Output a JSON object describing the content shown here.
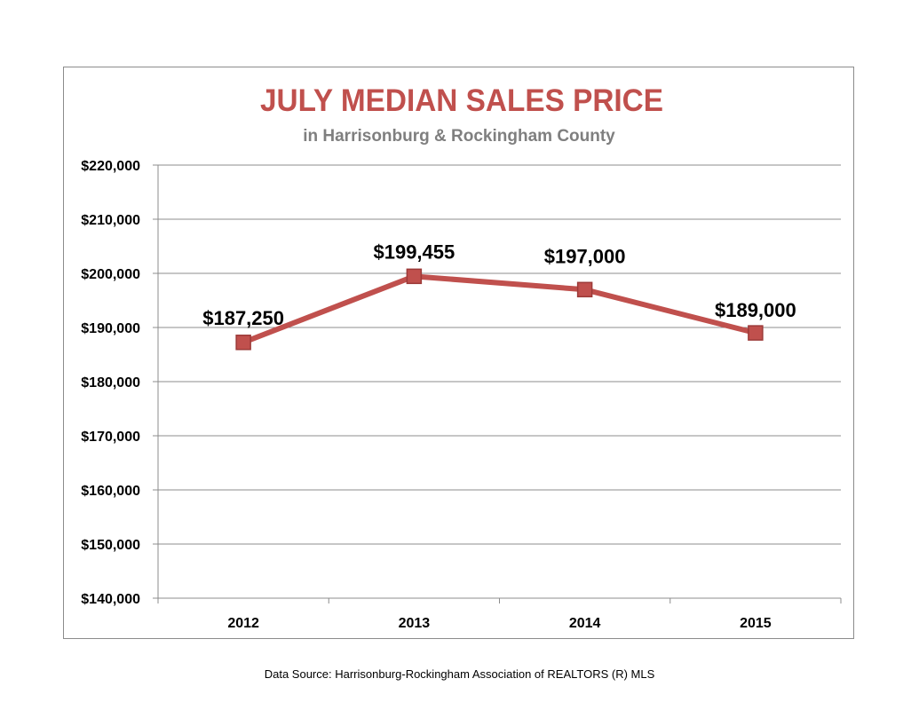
{
  "chart_data": {
    "type": "line",
    "title": "JULY MEDIAN SALES PRICE",
    "subtitle": "in Harrisonburg  & Rockingham County",
    "categories": [
      "2012",
      "2013",
      "2014",
      "2015"
    ],
    "series": [
      {
        "values": [
          187250,
          199455,
          197000,
          189000
        ],
        "labels": [
          "$187,250",
          "$199,455",
          "$197,000",
          "$189,000"
        ],
        "color": "#c0504d"
      }
    ],
    "yticks": [
      140000,
      150000,
      160000,
      170000,
      180000,
      190000,
      200000,
      210000,
      220000
    ],
    "ytick_labels": [
      "$140,000",
      "$150,000",
      "$160,000",
      "$170,000",
      "$180,000",
      "$190,000",
      "$200,000",
      "$210,000",
      "$220,000"
    ],
    "ylim": [
      140000,
      220000
    ],
    "grid": true,
    "legend": "none",
    "title_color": "#c0504d",
    "subtitle_color": "#7f7f7f"
  },
  "footer": {
    "source": "Data Source: Harrisonburg-Rockingham Association of REALTORS (R) MLS"
  }
}
